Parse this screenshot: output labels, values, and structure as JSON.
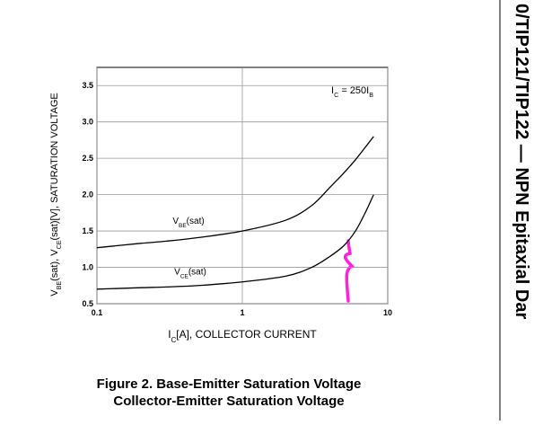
{
  "chart_data": {
    "type": "line",
    "title": "Figure 2. Base-Emitter Saturation Voltage",
    "subtitle": "Collector-Emitter Saturation Voltage",
    "side_title": "0/TIP121/TIP122 — NPN Epitaxial Dar",
    "annotation": [
      "I",
      "C",
      " = 250I",
      "B"
    ],
    "x_label": [
      "I",
      "C",
      "[A], COLLECTOR CURRENT"
    ],
    "y_label": [
      "V",
      "BE",
      "(sat), V",
      "CE",
      "(sat)[V], SATURATION VOLTAGE"
    ],
    "x_log": true,
    "grid": true,
    "xlim": [
      0.1,
      10
    ],
    "xticks": [
      0.1,
      1,
      10
    ],
    "ylim": [
      0.5,
      3.75
    ],
    "yticks": [
      0.5,
      {
        "value": 1,
        "label": "1.0"
      },
      1.5,
      {
        "value": 2,
        "label": "2.0"
      },
      2.5,
      {
        "value": 3,
        "label": "3.0"
      },
      3.5
    ],
    "x": [
      0.1,
      0.2,
      0.3,
      0.5,
      1,
      2,
      3,
      4,
      5,
      6,
      7,
      8
    ],
    "series": [
      {
        "name": [
          "V",
          "BE",
          "(sat)"
        ],
        "color": "#000000",
        "values": [
          1.27,
          1.33,
          1.36,
          1.41,
          1.5,
          1.65,
          1.85,
          2.1,
          2.3,
          2.48,
          2.65,
          2.8
        ]
      },
      {
        "name": [
          "V",
          "CE",
          "(sat)"
        ],
        "color": "#000000",
        "values": [
          0.7,
          0.72,
          0.73,
          0.75,
          0.8,
          0.88,
          1.0,
          1.15,
          1.3,
          1.5,
          1.75,
          2.0
        ]
      }
    ]
  }
}
